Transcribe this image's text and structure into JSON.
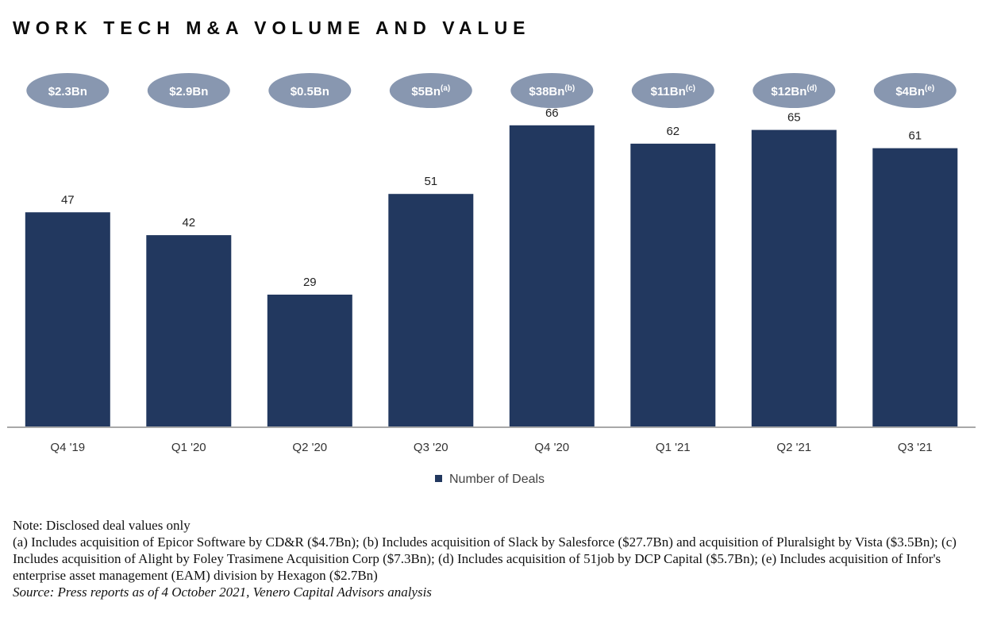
{
  "chart_data": {
    "type": "bar",
    "title": "WORK TECH M&A VOLUME AND VALUE",
    "categories": [
      "Q4 '19",
      "Q1 '20",
      "Q2 '20",
      "Q3 '20",
      "Q4 '20",
      "Q1 '21",
      "Q2 '21",
      "Q3 '21"
    ],
    "series": [
      {
        "name": "Number of Deals",
        "values": [
          47,
          42,
          29,
          51,
          66,
          62,
          65,
          61
        ]
      }
    ],
    "deal_values": [
      {
        "label": "$2.3Bn",
        "note": ""
      },
      {
        "label": "$2.9Bn",
        "note": ""
      },
      {
        "label": "$0.5Bn",
        "note": ""
      },
      {
        "label": "$5Bn",
        "note": "(a)"
      },
      {
        "label": "$38Bn",
        "note": "(b)"
      },
      {
        "label": "$11Bn",
        "note": "(c)"
      },
      {
        "label": "$12Bn",
        "note": "(d)"
      },
      {
        "label": "$4Bn",
        "note": "(e)"
      }
    ],
    "ylim": [
      0,
      75
    ],
    "xlabel": "",
    "ylabel": "",
    "grid": false,
    "legend": "bottom-center",
    "colors": {
      "bar": "#22385f",
      "bubble": "#8897b0",
      "bubble_text": "#ffffff",
      "axis": "#a8a8a8"
    }
  },
  "notes": {
    "note": "Note: Disclosed deal values only",
    "footnotes": "(a) Includes acquisition of Epicor Software by CD&R ($4.7Bn); (b) Includes acquisition of Slack by Salesforce ($27.7Bn) and acquisition of Pluralsight by Vista ($3.5Bn); (c) Includes acquisition of Alight by Foley Trasimene Acquisition Corp ($7.3Bn); (d) Includes acquisition of 51job by DCP Capital ($5.7Bn); (e) Includes acquisition of Infor's enterprise asset management (EAM) division by Hexagon ($2.7Bn)",
    "source": "Source: Press reports as of 4 October 2021, Venero Capital Advisors analysis"
  }
}
